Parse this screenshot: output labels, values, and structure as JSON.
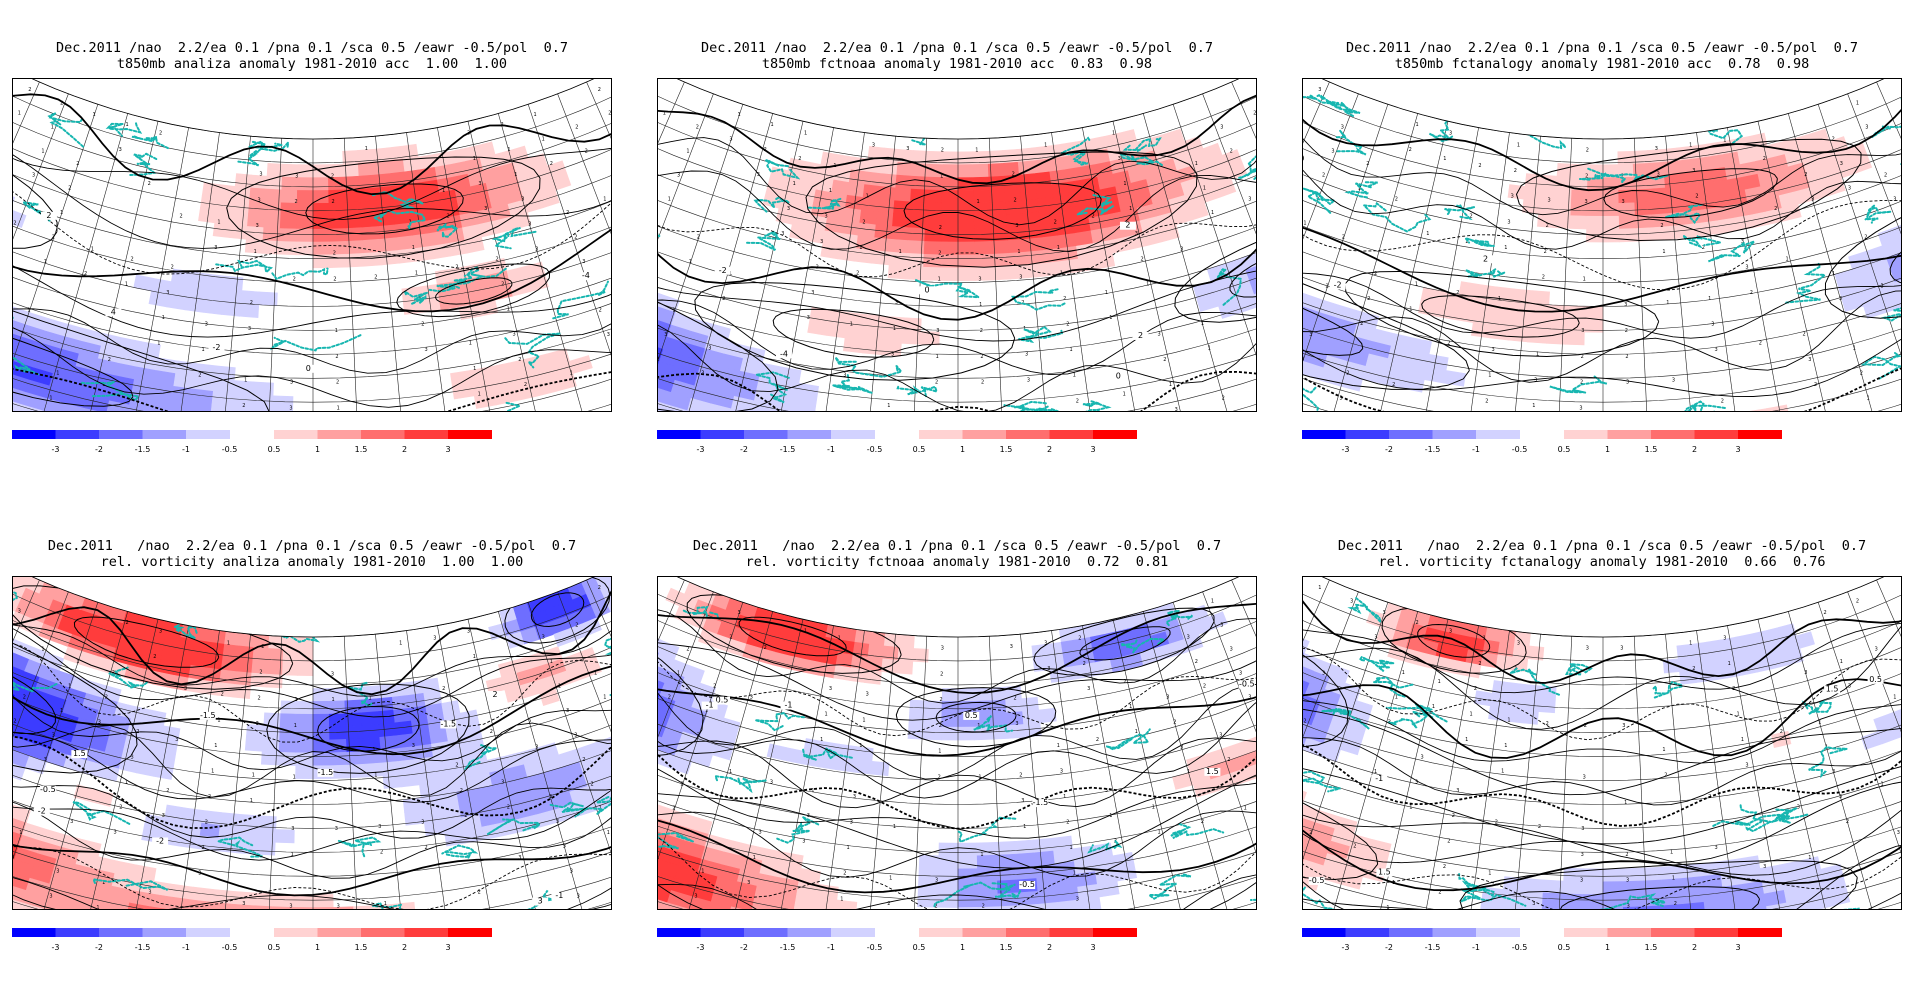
{
  "panels": [
    {
      "line1": "Dec.2011 /nao  2.2/ea 0.1 /pna 0.1 /sca 0.5 /eawr -0.5/pol  0.7",
      "line2": "t850mb analiza anomaly 1981-2010 acc  1.00  1.00",
      "pattern": "t_analysis",
      "contour_labels": [
        "-4",
        "-2",
        "0",
        "-2",
        "4",
        "2",
        "-10"
      ]
    },
    {
      "line1": "Dec.2011 /nao  2.2/ea 0.1 /pna 0.1 /sca 0.5 /eawr -0.5/pol  0.7",
      "line2": "t850mb fctnoaa anomaly 1981-2010 acc  0.83  0.98",
      "pattern": "t_noaa",
      "contour_labels": [
        "-4",
        "-2",
        "2",
        "0",
        "-2",
        "2",
        "0"
      ]
    },
    {
      "line1": "Dec.2011 /nao  2.2/ea 0.1 /pna 0.1 /sca 0.5 /eawr -0.5/pol  0.7",
      "line2": "t850mb fctanalogy anomaly 1981-2010 acc  0.78  0.98",
      "pattern": "t_analogy",
      "contour_labels": [
        "-2",
        "0",
        "2",
        "-10",
        "4"
      ]
    },
    {
      "line1": "Dec.2011   /nao  2.2/ea 0.1 /pna 0.1 /sca 0.5 /eawr -0.5/pol  0.7",
      "line2": "rel. vorticity analiza anomaly 1981-2010  1.00  1.00",
      "pattern": "v_analysis",
      "contour_labels": [
        "-1.5",
        "0.5",
        "-1.5",
        "-2",
        "-1.5",
        "-1",
        "0.5",
        "1.5",
        "-0.5",
        "2",
        "3",
        "-2"
      ]
    },
    {
      "line1": "Dec.2011   /nao  2.2/ea 0.1 /pna 0.1 /sca 0.5 /eawr -0.5/pol  0.7",
      "line2": "rel. vorticity fctnoaa anomaly 1981-2010  0.72  0.81",
      "pattern": "v_noaa",
      "contour_labels": [
        "-0.5",
        "-1.5",
        "0.5",
        "-1",
        "-0.5",
        "0.5",
        "1.5",
        "-1",
        "0.5"
      ]
    },
    {
      "line1": "Dec.2011   /nao  2.2/ea 0.1 /pna 0.1 /sca 0.5 /eawr -0.5/pol  0.7",
      "line2": "rel. vorticity fctanalogy anomaly 1981-2010  0.66  0.76",
      "pattern": "v_analogy",
      "contour_labels": [
        "0.5",
        "-0.5",
        "1.5",
        "0.5",
        "-1",
        "1.5",
        "0.5",
        "-0.5"
      ]
    }
  ],
  "colorbar": {
    "neg_colors": [
      "#0000ff",
      "#3c3cff",
      "#6e6eff",
      "#a0a0ff",
      "#d2d2ff"
    ],
    "pos_colors": [
      "#ffd2d2",
      "#ffa0a0",
      "#ff6e6e",
      "#ff3c3c",
      "#ff0000"
    ],
    "neg_labels": [
      "-3",
      "-2",
      "-1.5",
      "-1",
      "-0.5"
    ],
    "pos_labels": [
      "0.5",
      "1",
      "1.5",
      "2",
      "3"
    ]
  },
  "colors": {
    "coast": "#17b6b0",
    "contour": "#000000",
    "grid": "#222222"
  }
}
